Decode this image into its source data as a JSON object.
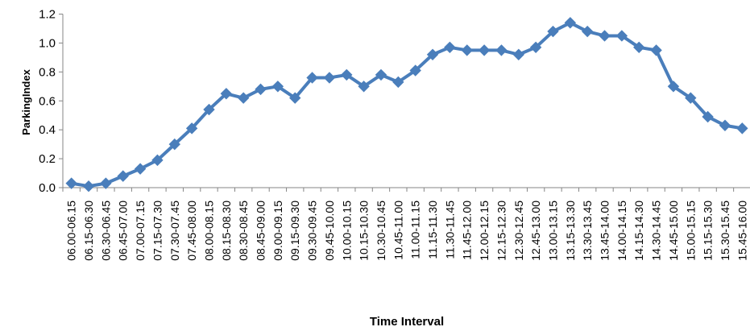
{
  "chart_data": {
    "type": "line",
    "xlabel": "Time Interval",
    "ylabel": "ParkingIndex",
    "ylim": [
      0,
      1.2
    ],
    "yticks": [
      "0.0",
      "0.2",
      "0.4",
      "0.6",
      "0.8",
      "1.0",
      "1.2"
    ],
    "grid": false,
    "legend": "none",
    "line_color": "#4a7ebb",
    "categories": [
      "06.00-06.15",
      "06.15-06.30",
      "06.30-06.45",
      "06.45-07.00",
      "07.00-07.15",
      "07.15-07.30",
      "07.30-07.45",
      "07.45-08.00",
      "08.00-08.15",
      "08.15-08.30",
      "08.30-08.45",
      "08.45-09.00",
      "09.00-09.15",
      "09.15-09.30",
      "09.30-09.45",
      "09.45-10.00",
      "10.00-10.15",
      "10.15-10.30",
      "10.30-10.45",
      "10.45-11.00",
      "11.00-11.15",
      "11.15-11.30",
      "11.30-11.45",
      "11.45-12.00",
      "12.00-12.15",
      "12.15-12.30",
      "12.30-12.45",
      "12.45-13.00",
      "13.00-13.15",
      "13.15-13.30",
      "13.30-13.45",
      "13.45-14.00",
      "14.00-14.15",
      "14.15-14.30",
      "14.30-14.45",
      "14.45-15.00",
      "15.00-15.15",
      "15.15-15.30",
      "15.30-15.45",
      "15.45-16.00"
    ],
    "values": [
      0.03,
      0.01,
      0.03,
      0.08,
      0.13,
      0.19,
      0.3,
      0.41,
      0.54,
      0.65,
      0.62,
      0.68,
      0.7,
      0.62,
      0.76,
      0.76,
      0.78,
      0.7,
      0.78,
      0.73,
      0.81,
      0.92,
      0.97,
      0.95,
      0.95,
      0.95,
      0.92,
      0.97,
      1.08,
      1.14,
      1.08,
      1.05,
      1.05,
      0.97,
      0.95,
      0.7,
      0.62,
      0.49,
      0.43,
      0.41
    ]
  }
}
